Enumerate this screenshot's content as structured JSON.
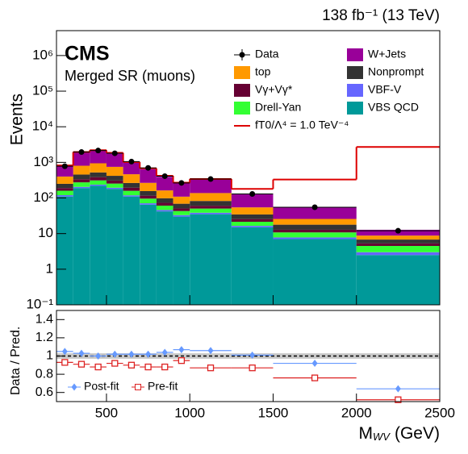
{
  "chart_data": {
    "type": "stacked_histogram",
    "title": "138 fb⁻¹ (13 TeV)",
    "experiment": "CMS",
    "region": "Merged SR (muons)",
    "y_label": "Events",
    "ratio_label": "Data / Pred.",
    "x_label": {
      "main": "M",
      "sub": "WV",
      "unit": "(GeV)"
    },
    "bins": [
      200,
      300,
      400,
      500,
      600,
      700,
      800,
      900,
      1000,
      1250,
      1500,
      2000,
      2500
    ],
    "xlim": [
      200,
      2500
    ],
    "xticks": [
      500,
      1000,
      1500,
      2000,
      2500
    ],
    "log_y": true,
    "ylim": [
      0.1,
      5000000
    ],
    "yticks": [
      {
        "value": 0.1,
        "label": "10⁻¹"
      },
      1,
      10,
      {
        "value": 100,
        "label": "10²"
      },
      {
        "value": 1000,
        "label": "10³"
      },
      {
        "value": 10000,
        "label": "10⁴"
      },
      {
        "value": 100000,
        "label": "10⁵"
      },
      {
        "value": 1000000,
        "label": "10⁶"
      }
    ],
    "series": [
      {
        "name": "VBS QCD",
        "color": "#009999",
        "values": [
          110,
          190,
          220,
          180,
          110,
          65,
          42,
          30,
          35,
          15,
          7,
          2.5
        ]
      },
      {
        "name": "VBF-V",
        "color": "#6666ff",
        "values": [
          10,
          15,
          17,
          14,
          9,
          6,
          4,
          3,
          3.5,
          1.5,
          0.8,
          0.5
        ]
      },
      {
        "name": "Drell-Yan",
        "color": "#33ff33",
        "values": [
          40,
          70,
          75,
          60,
          40,
          25,
          15,
          10,
          12,
          5,
          3,
          1.5
        ]
      },
      {
        "name": "Vγ+Vγ*",
        "color": "#660033",
        "values": [
          30,
          60,
          70,
          55,
          35,
          20,
          12,
          8,
          10,
          4,
          2,
          0.8
        ]
      },
      {
        "name": "Nonprompt",
        "color": "#333333",
        "values": [
          60,
          120,
          140,
          110,
          70,
          40,
          25,
          18,
          22,
          9,
          5,
          1.5
        ]
      },
      {
        "name": "top",
        "color": "#ff9900",
        "values": [
          150,
          350,
          420,
          330,
          200,
          110,
          65,
          40,
          55,
          20,
          8,
          2
        ]
      },
      {
        "name": "W+Jets",
        "color": "#990099",
        "values": [
          400,
          1100,
          1200,
          1000,
          550,
          380,
          230,
          150,
          200,
          75,
          28,
          4
        ]
      }
    ],
    "data": {
      "name": "Data",
      "color": "#000000",
      "values": [
        780,
        1950,
        2150,
        1800,
        1050,
        700,
        410,
        265,
        340,
        130,
        55,
        12
      ]
    },
    "signal": {
      "name": "fT0/Λ⁴ = 1.0 TeV⁻⁴",
      "color": "#dd0000",
      "values": [
        820,
        1950,
        2200,
        1850,
        1020,
        680,
        420,
        270,
        340,
        180,
        330,
        2700
      ]
    },
    "ratio": {
      "ylim": [
        0.5,
        1.5
      ],
      "yticks": [
        0.6,
        0.8,
        1,
        1.2,
        1.4
      ],
      "reference": 1,
      "band": [
        0.97,
        1.03
      ],
      "series": [
        {
          "name": "Post-fit",
          "color": "#6699ff",
          "values": [
            1.05,
            1.03,
            1.0,
            1.02,
            1.02,
            1.02,
            1.04,
            1.07,
            1.06,
            1.01,
            0.92,
            0.64
          ]
        },
        {
          "name": "Pre-fit",
          "color": "#dd2222",
          "values": [
            0.93,
            0.91,
            0.88,
            0.92,
            0.9,
            0.88,
            0.88,
            0.95,
            0.87,
            0.87,
            0.76,
            0.52
          ]
        }
      ]
    }
  }
}
